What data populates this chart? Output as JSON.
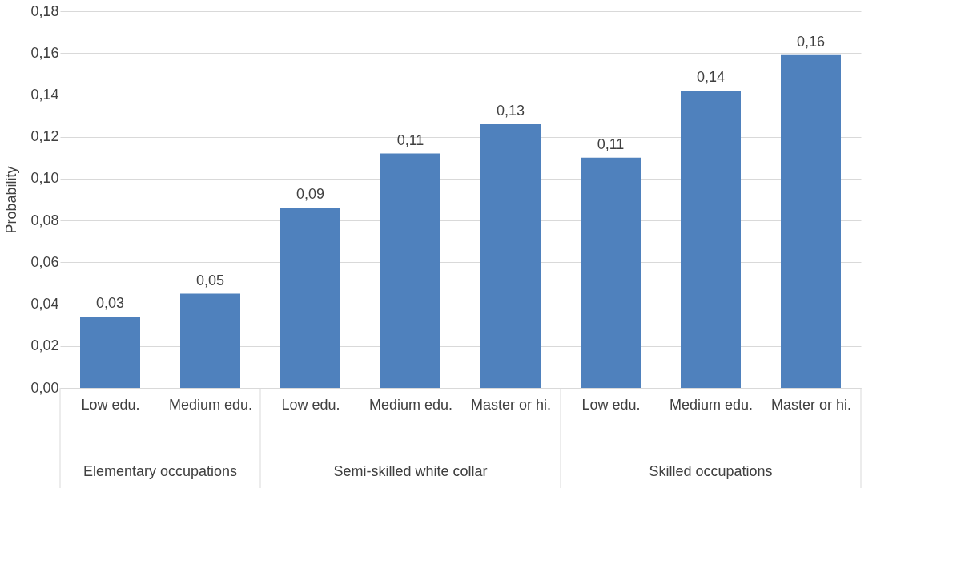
{
  "chart_data": {
    "type": "bar",
    "ylabel": "Probability",
    "categories": [
      "Low edu.",
      "Medium edu.",
      "Low edu.",
      "Medium edu.",
      "Master or hi.",
      "Low edu.",
      "Medium edu.",
      "Master or hi."
    ],
    "values": [
      0.034,
      0.045,
      0.086,
      0.112,
      0.126,
      0.11,
      0.142,
      0.159
    ],
    "value_labels": [
      "0,03",
      "0,05",
      "0,09",
      "0,11",
      "0,13",
      "0,11",
      "0,14",
      "0,16"
    ],
    "color": "#4f81bd",
    "annotations": [
      "Elementary occupations",
      "Semi-skilled white collar",
      "Skilled occupations"
    ],
    "ylim": [
      0,
      0.18
    ],
    "yticks": [
      {
        "value": 0,
        "label": "0,00"
      },
      {
        "value": 0.02,
        "label": "0,02"
      },
      {
        "value": 0.04,
        "label": "0,04"
      },
      {
        "value": 0.06,
        "label": "0,06"
      },
      {
        "value": 0.08,
        "label": "0,08"
      },
      {
        "value": 0.1,
        "label": "0,10"
      },
      {
        "value": 0.12,
        "label": "0,12"
      },
      {
        "value": 0.14,
        "label": "0,14"
      },
      {
        "value": 0.16,
        "label": "0,16"
      },
      {
        "value": 0.18,
        "label": "0,18"
      }
    ],
    "grid": true
  }
}
